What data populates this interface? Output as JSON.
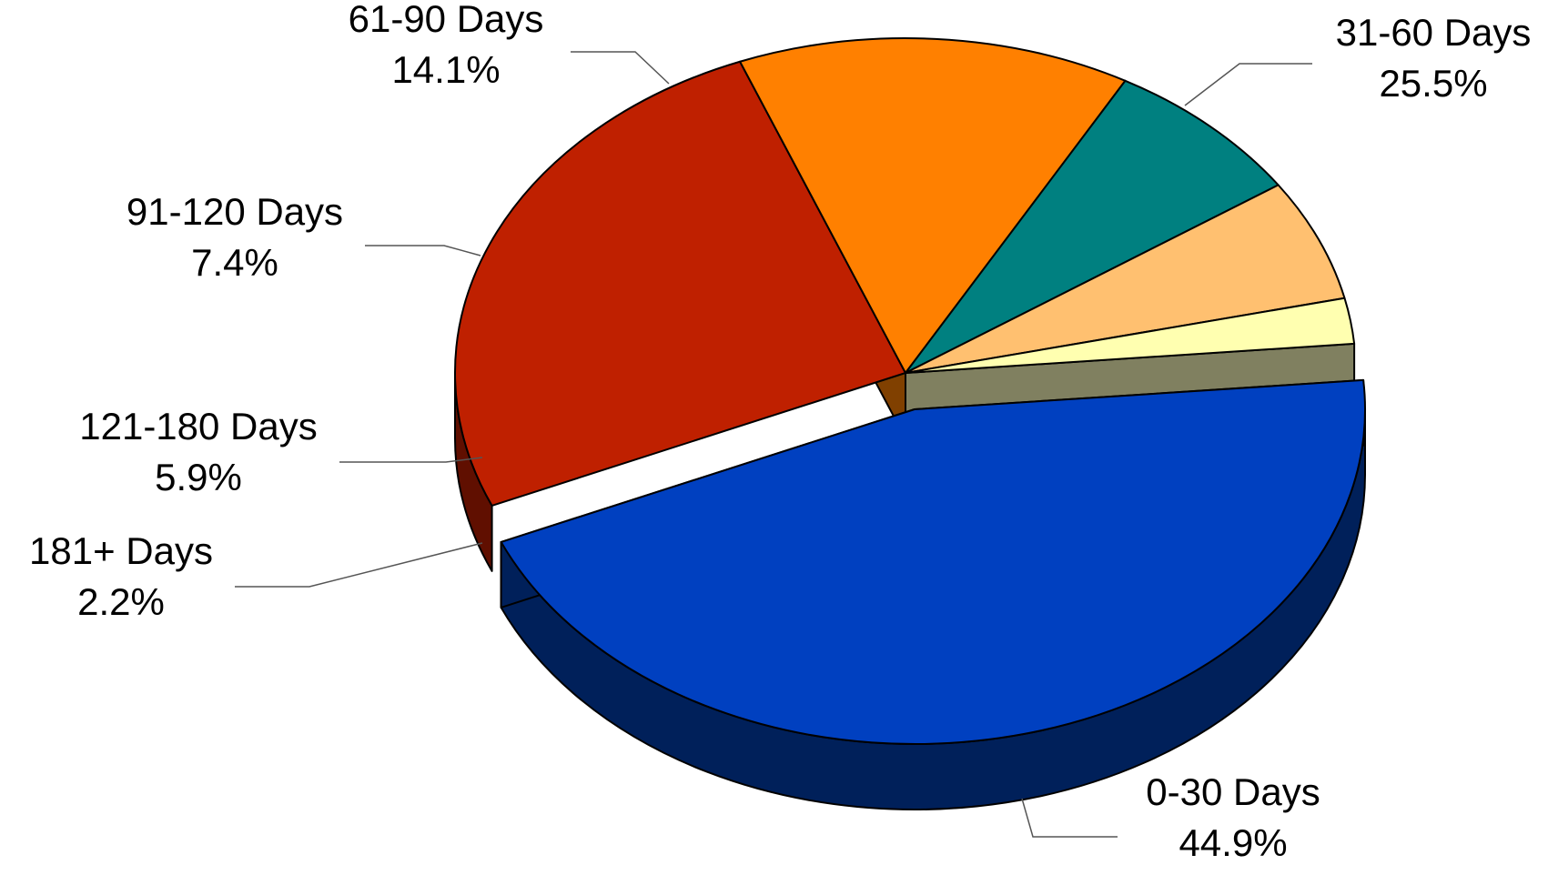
{
  "chart_data": {
    "type": "pie",
    "style": "3d-exploded",
    "title": "",
    "slices": [
      {
        "label": "0-30 Days",
        "percent_label": "44.9%",
        "value": 44.9,
        "color": "#0040C0",
        "side_color": "#00205A",
        "exploded": true
      },
      {
        "label": "31-60 Days",
        "percent_label": "25.5%",
        "value": 25.5,
        "color": "#BF2000",
        "side_color": "#600F00",
        "exploded": false
      },
      {
        "label": "61-90 Days",
        "percent_label": "14.1%",
        "value": 14.1,
        "color": "#FF8000",
        "side_color": "#804000",
        "exploded": false
      },
      {
        "label": "91-120 Days",
        "percent_label": "7.4%",
        "value": 7.4,
        "color": "#008080",
        "side_color": "#004040",
        "exploded": false
      },
      {
        "label": "121-180 Days",
        "percent_label": "5.9%",
        "value": 5.9,
        "color": "#FFC070",
        "side_color": "#806030",
        "exploded": false
      },
      {
        "label": "181+ Days",
        "percent_label": "2.2%",
        "value": 2.2,
        "color": "#FFFFB0",
        "side_color": "#808060",
        "exploded": false
      }
    ],
    "legend": "none",
    "data_labels": "outside-with-leader-lines"
  }
}
